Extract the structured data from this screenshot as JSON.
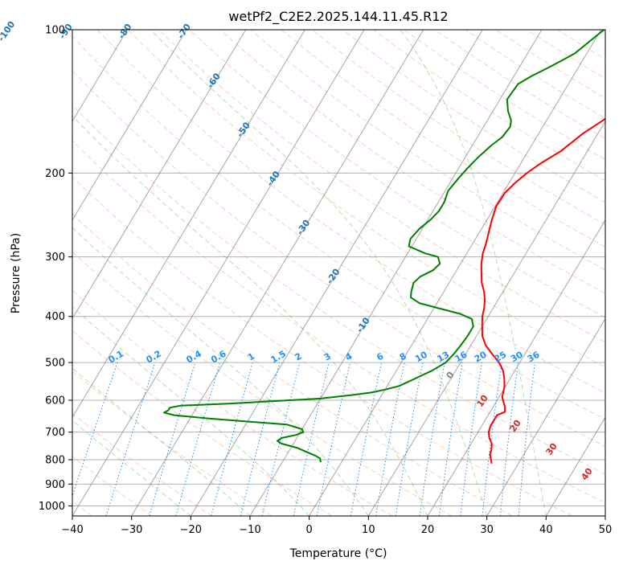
{
  "chart_data": {
    "type": "line",
    "title": "wetPf2_C2E2.2025.144.11.45.R12",
    "xlabel": "Temperature (°C)",
    "ylabel": "Pressure (hPa)",
    "xlim": [
      -40,
      50
    ],
    "ylim": [
      1050,
      100
    ],
    "y_scale": "log",
    "x_ticks": [
      -40,
      -30,
      -20,
      -10,
      0,
      10,
      20,
      30,
      40,
      50
    ],
    "y_ticks": [
      100,
      200,
      300,
      400,
      500,
      600,
      700,
      800,
      900,
      1000
    ],
    "grid": true,
    "colors": {
      "temperature": "#ff0000",
      "dewpoint": "#008000",
      "isotherm": "#808080",
      "dry_adiabat": "#ff7f50",
      "moist_adiabat": "#2ca02c",
      "mixing_ratio": "#1e90ff",
      "isotherm_label": "#1f77b4",
      "dry_adiabat_label": "#d62728"
    },
    "series": [
      {
        "points": [
          [
            17.0,
            100
          ],
          [
            16.0,
            115
          ],
          [
            14.8,
            125
          ],
          [
            14.2,
            128
          ],
          [
            13.0,
            135
          ],
          [
            11.5,
            145
          ],
          [
            9.5,
            155
          ],
          [
            7.5,
            165
          ],
          [
            5.5,
            180
          ],
          [
            3.5,
            190
          ],
          [
            2.0,
            200
          ],
          [
            1.0,
            210
          ],
          [
            0.3,
            220
          ],
          [
            0.2,
            235
          ],
          [
            0.8,
            250
          ],
          [
            1.5,
            265
          ],
          [
            2.2,
            280
          ],
          [
            2.7,
            295
          ],
          [
            3.5,
            310
          ],
          [
            4.5,
            325
          ],
          [
            5.5,
            340
          ],
          [
            6.8,
            355
          ],
          [
            7.8,
            370
          ],
          [
            8.5,
            385
          ],
          [
            9.0,
            400
          ],
          [
            10.0,
            420
          ],
          [
            11.0,
            440
          ],
          [
            12.5,
            460
          ],
          [
            14.5,
            480
          ],
          [
            16.5,
            500
          ],
          [
            18.0,
            520
          ],
          [
            19.0,
            540
          ],
          [
            19.8,
            560
          ],
          [
            20.3,
            580
          ],
          [
            20.5,
            590
          ],
          [
            21.0,
            600
          ],
          [
            22.0,
            620
          ],
          [
            22.5,
            635
          ],
          [
            21.5,
            645
          ],
          [
            21.5,
            660
          ],
          [
            21.5,
            680
          ],
          [
            21.8,
            700
          ],
          [
            22.5,
            720
          ],
          [
            23.5,
            740
          ],
          [
            24.0,
            760
          ],
          [
            24.3,
            780
          ],
          [
            25.0,
            800
          ],
          [
            25.5,
            815
          ]
        ]
      },
      {
        "points": [
          [
            0.5,
            100
          ],
          [
            -1.0,
            107
          ],
          [
            -2.0,
            112
          ],
          [
            -3.5,
            116
          ],
          [
            -5.0,
            120
          ],
          [
            -7.0,
            125
          ],
          [
            -8.5,
            130
          ],
          [
            -8.8,
            140
          ],
          [
            -7.5,
            148
          ],
          [
            -6.0,
            155
          ],
          [
            -5.5,
            160
          ],
          [
            -5.8,
            168
          ],
          [
            -6.8,
            175
          ],
          [
            -7.8,
            185
          ],
          [
            -8.5,
            195
          ],
          [
            -9.0,
            205
          ],
          [
            -9.5,
            218
          ],
          [
            -9.0,
            230
          ],
          [
            -9.0,
            240
          ],
          [
            -9.5,
            250
          ],
          [
            -10.5,
            262
          ],
          [
            -11.0,
            275
          ],
          [
            -10.5,
            285
          ],
          [
            -7.0,
            295
          ],
          [
            -4.5,
            300
          ],
          [
            -3.5,
            310
          ],
          [
            -4.0,
            320
          ],
          [
            -5.5,
            330
          ],
          [
            -6.0,
            340
          ],
          [
            -5.5,
            355
          ],
          [
            -5.0,
            365
          ],
          [
            -3.0,
            375
          ],
          [
            1.0,
            385
          ],
          [
            5.0,
            395
          ],
          [
            7.5,
            405
          ],
          [
            8.5,
            420
          ],
          [
            8.5,
            440
          ],
          [
            8.3,
            460
          ],
          [
            8.0,
            480
          ],
          [
            7.5,
            500
          ],
          [
            6.0,
            520
          ],
          [
            4.0,
            540
          ],
          [
            2.0,
            560
          ],
          [
            0.0,
            570
          ],
          [
            -2.0,
            578
          ],
          [
            -5.0,
            585
          ],
          [
            -10.0,
            595
          ],
          [
            -15.0,
            600
          ],
          [
            -25.0,
            610
          ],
          [
            -33.0,
            616
          ],
          [
            -34.5,
            622
          ],
          [
            -34.5,
            630
          ],
          [
            -35.0,
            637
          ],
          [
            -33.0,
            645
          ],
          [
            -27.0,
            655
          ],
          [
            -20.0,
            665
          ],
          [
            -13.0,
            675
          ],
          [
            -10.0,
            690
          ],
          [
            -9.5,
            700
          ],
          [
            -10.5,
            710
          ],
          [
            -12.5,
            720
          ],
          [
            -13.0,
            730
          ],
          [
            -12.0,
            740
          ],
          [
            -9.0,
            755
          ],
          [
            -7.0,
            770
          ],
          [
            -5.0,
            785
          ],
          [
            -4.0,
            795
          ],
          [
            -3.5,
            810
          ]
        ]
      }
    ],
    "isotherm_labels": [
      "-100",
      "-90",
      "-80",
      "-70",
      "-60",
      "-50",
      "-40",
      "-30",
      "-20",
      "-10",
      "0",
      "10",
      "20",
      "30",
      "40"
    ],
    "mixing_ratio_labels": [
      "0.1",
      "0.2",
      "0.4",
      "0.6",
      "1",
      "1.5",
      "2",
      "3",
      "4",
      "6",
      "8",
      "10",
      "13",
      "16",
      "20",
      "25",
      "30",
      "36"
    ]
  }
}
